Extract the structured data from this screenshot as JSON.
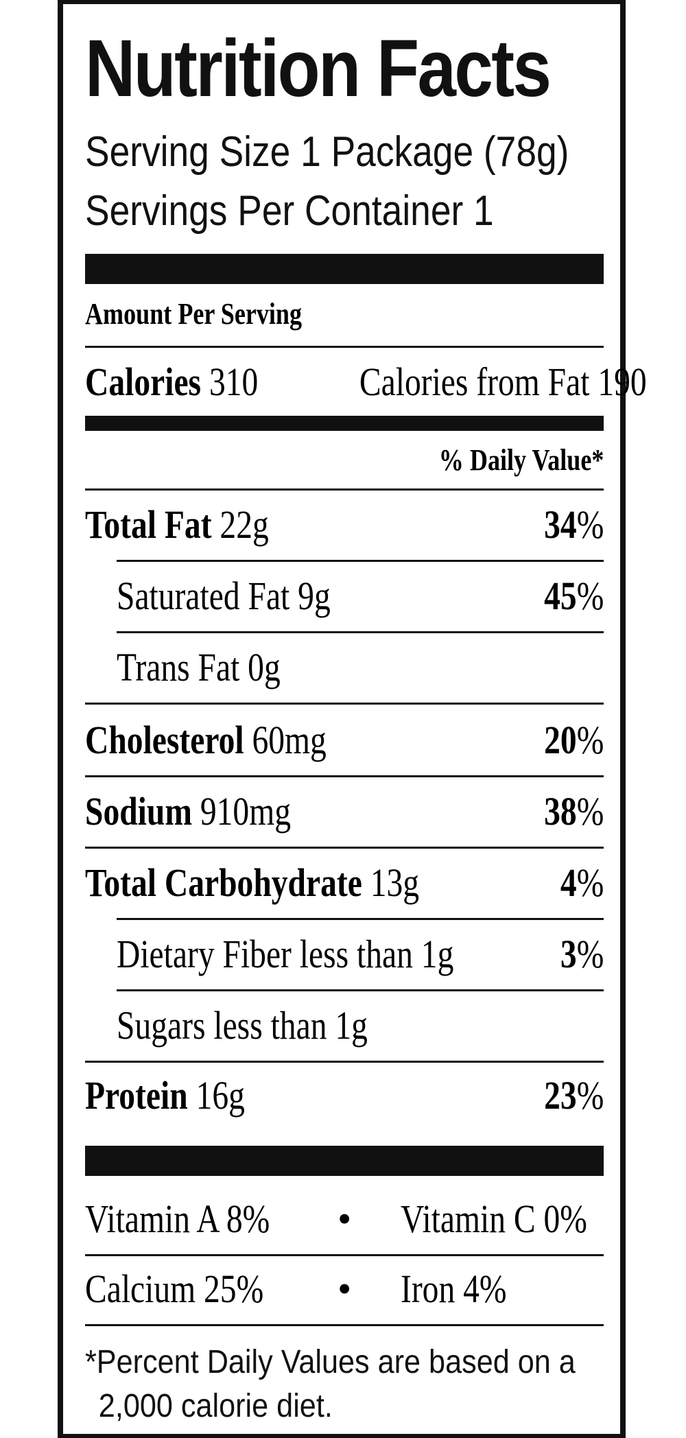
{
  "title": "Nutrition Facts",
  "serving_size": "Serving Size 1 Package (78g)",
  "servings_per_container": "Servings Per Container 1",
  "amount_per_serving": "Amount Per Serving",
  "calories": {
    "label": "Calories",
    "value": "310",
    "from_fat_label": "Calories from Fat",
    "from_fat_value": "190"
  },
  "daily_value_header": "% Daily Value*",
  "nutrients": [
    {
      "name": "Total Fat",
      "amount": "22g",
      "dv": "34",
      "bold": true,
      "indent": false
    },
    {
      "name": "Saturated Fat",
      "amount": "9g",
      "dv": "45",
      "bold": false,
      "indent": true
    },
    {
      "name": "Trans Fat",
      "amount": "0g",
      "dv": "",
      "bold": false,
      "indent": true
    },
    {
      "name": "Cholesterol",
      "amount": "60mg",
      "dv": "20",
      "bold": true,
      "indent": false
    },
    {
      "name": "Sodium",
      "amount": "910mg",
      "dv": "38",
      "bold": true,
      "indent": false
    },
    {
      "name": "Total Carbohydrate",
      "amount": "13g",
      "dv": "4",
      "bold": true,
      "indent": false
    },
    {
      "name": "Dietary Fiber",
      "amount": "less than 1g",
      "dv": "3",
      "bold": false,
      "indent": true
    },
    {
      "name": "Sugars",
      "amount": "less than 1g",
      "dv": "",
      "bold": false,
      "indent": true
    },
    {
      "name": "Protein",
      "amount": "16g",
      "dv": "23",
      "bold": true,
      "indent": false
    }
  ],
  "percent_sign": "%",
  "vitamins": [
    {
      "left": "Vitamin A 8%",
      "bullet": "•",
      "right": "Vitamin C 0%"
    },
    {
      "left": "Calcium 25%",
      "bullet": "•",
      "right": "Iron 4%"
    }
  ],
  "footnote_line1": "*Percent Daily Values are based on a",
  "footnote_line2": "2,000 calorie diet.",
  "colors": {
    "ink": "#111111",
    "background": "#ffffff"
  }
}
